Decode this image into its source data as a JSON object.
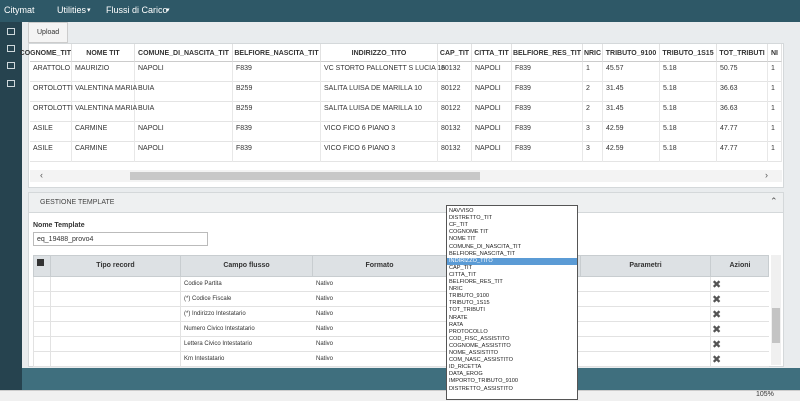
{
  "nav": {
    "brand": "Citymat",
    "menus": [
      "Utilities",
      "Flussi di Carico"
    ]
  },
  "tab": "Upload",
  "table": {
    "columns": [
      "COGNOME_TIT",
      "NOME TIT",
      "COMUNE_DI_NASCITA_TIT",
      "BELFIORE_NASCITA_TIT",
      "INDIRIZZO_TITO",
      "CAP_TIT",
      "CITTA_TIT",
      "BELFIORE_RES_TIT",
      "NRIC",
      "TRIBUTO_9100",
      "TRIBUTO_1S15",
      "TOT_TRIBUTI",
      "NI"
    ],
    "rows": [
      [
        "ARATTOLO",
        "MAURIZIO",
        "NAPOLI",
        "F839",
        "VC STORTO PALLONETT S LUCIA 16",
        "80132",
        "NAPOLI",
        "F839",
        "1",
        "45.57",
        "5.18",
        "50.75",
        "1"
      ],
      [
        "ORTOLOTTI",
        "VALENTINA MARIA",
        "BUIA",
        "B259",
        "SALITA LUISA DE MARILLA 10",
        "80122",
        "NAPOLI",
        "F839",
        "2",
        "31.45",
        "5.18",
        "36.63",
        "1"
      ],
      [
        "ORTOLOTTI",
        "VALENTINA MARIA",
        "BUIA",
        "B259",
        "SALITA LUISA DE MARILLA 10",
        "80122",
        "NAPOLI",
        "F839",
        "2",
        "31.45",
        "5.18",
        "36.63",
        "1"
      ],
      [
        "ASILE",
        "CARMINE",
        "NAPOLI",
        "F839",
        "VICO FICO 6 PIANO 3",
        "80132",
        "NAPOLI",
        "F839",
        "3",
        "42.59",
        "5.18",
        "47.77",
        "1"
      ],
      [
        "ASILE",
        "CARMINE",
        "NAPOLI",
        "F839",
        "VICO FICO 6 PIANO 3",
        "80132",
        "NAPOLI",
        "F839",
        "3",
        "42.59",
        "5.18",
        "47.77",
        "1"
      ]
    ]
  },
  "template": {
    "section": "GESTIONE TEMPLATE",
    "name_label": "Nome Template",
    "name_value": "eq_19488_provo4",
    "grid": {
      "columns": [
        "Tipo record",
        "Campo flusso",
        "Formato",
        "Parametri",
        "Azioni"
      ],
      "rows": [
        [
          "Codice Partita",
          "Nativo"
        ],
        [
          "(*) Codice Fiscale",
          "Nativo"
        ],
        [
          "(*) Indirizzo Intestatario",
          "Nativo"
        ],
        [
          "Numero Civico Intestatario",
          "Nativo"
        ],
        [
          "Lettera Civico Intestatario",
          "Nativo"
        ],
        [
          "Km Intestatario",
          "Nativo"
        ]
      ]
    }
  },
  "dropdown": {
    "items": [
      "NAVVISO",
      "DISTRETTO_TIT",
      "CF_TIT",
      "COGNOME TIT",
      "NOME TIT",
      "COMUNE_DI_NASCITA_TIT",
      "BELFIORE_NASCITA_TIT",
      "INDIRIZZO_TITO",
      "CAP_TIT",
      "CITTA_TIT",
      "BELFIORE_RES_TIT",
      "NRIC",
      "TRIBUTO_9100",
      "TRIBUTO_1S15",
      "TOT_TRIBUTI",
      "NRATE",
      "RATA",
      "PROTOCOLLO",
      "COD_FISC_ASSISTITO",
      "COGNOME_ASSISTITO",
      "NOME_ASSISTITO",
      "COM_NASC_ASSISTITO",
      "ID_RICETTA",
      "DATA_EROG",
      "IMPORTO_TRIBUTO_9100",
      "DISTRETTO_ASSISTITO"
    ],
    "selected": 7
  },
  "status": {
    "zoom": "105%"
  }
}
